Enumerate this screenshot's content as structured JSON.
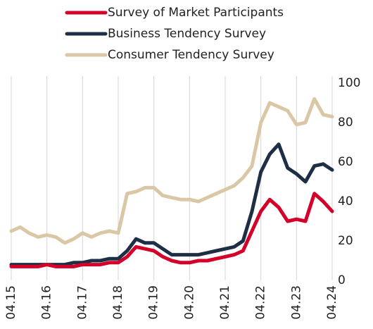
{
  "chart_data": {
    "type": "line",
    "categories": [
      "04.15",
      null,
      null,
      null,
      "04.16",
      null,
      null,
      null,
      "04.17",
      null,
      null,
      null,
      "04.18",
      null,
      null,
      null,
      "04.19",
      null,
      null,
      null,
      "04.20",
      null,
      null,
      null,
      "04.21",
      null,
      null,
      null,
      "04.22",
      null,
      null,
      null,
      "04.23",
      null,
      null,
      null,
      "04.24"
    ],
    "series": [
      {
        "name": "Survey of Market Participants",
        "color": "#d4002a",
        "values": [
          7,
          7,
          7,
          7,
          8,
          7,
          7,
          7,
          8,
          8,
          8,
          9,
          9,
          12,
          17,
          16,
          15,
          12,
          10,
          9,
          9,
          10,
          10,
          11,
          12,
          13,
          15,
          25,
          35,
          41,
          37,
          30,
          31,
          30,
          44,
          40,
          35
        ]
      },
      {
        "name": "Business Tendency Survey",
        "color": "#1e2f45",
        "values": [
          8,
          8,
          8,
          8,
          8,
          8,
          8,
          9,
          9,
          10,
          10,
          11,
          11,
          15,
          21,
          19,
          19,
          16,
          13,
          13,
          13,
          13,
          14,
          15,
          16,
          17,
          20,
          35,
          55,
          64,
          69,
          57,
          54,
          50,
          58,
          59,
          56
        ]
      },
      {
        "name": "Consumer Tendency Survey",
        "color": "#d9c7a6",
        "values": [
          25,
          27,
          24,
          22,
          23,
          22,
          19,
          21,
          24,
          22,
          24,
          25,
          24,
          44,
          45,
          47,
          47,
          43,
          42,
          41,
          41,
          40,
          42,
          44,
          46,
          48,
          52,
          58,
          80,
          90,
          88,
          86,
          79,
          80,
          92,
          84,
          83
        ]
      }
    ],
    "ylim": [
      0,
      100
    ],
    "yticks": [
      0,
      20,
      40,
      60,
      80,
      100
    ],
    "grid": true
  }
}
